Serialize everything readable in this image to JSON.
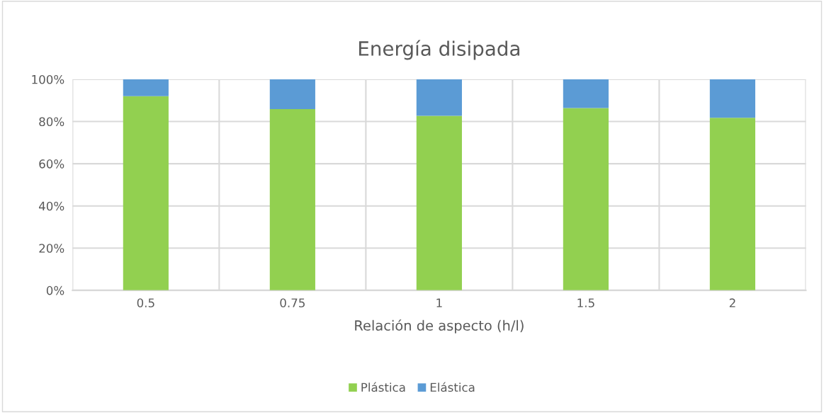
{
  "chart_data": {
    "type": "bar",
    "stacked": true,
    "title": "Energía disipada",
    "xlabel": "Relación de aspecto (h/l)",
    "categories": [
      "0.5",
      "0.75",
      "1",
      "1.5",
      "2"
    ],
    "series": [
      {
        "name": "Plástica",
        "color": "#92d050",
        "values": [
          92.0,
          85.9,
          82.7,
          86.4,
          81.8
        ]
      },
      {
        "name": "Elástica",
        "color": "#5b9bd5",
        "values": [
          8.0,
          14.1,
          17.3,
          13.6,
          18.2
        ]
      }
    ],
    "ylim": [
      0,
      100
    ],
    "yticks": [
      {
        "value": 0,
        "label": "0%"
      },
      {
        "value": 20,
        "label": "20%"
      },
      {
        "value": 40,
        "label": "40%"
      },
      {
        "value": 60,
        "label": "60%"
      },
      {
        "value": 80,
        "label": "80%"
      },
      {
        "value": 100,
        "label": "100%"
      }
    ],
    "grid": true,
    "legend": "bottom"
  }
}
